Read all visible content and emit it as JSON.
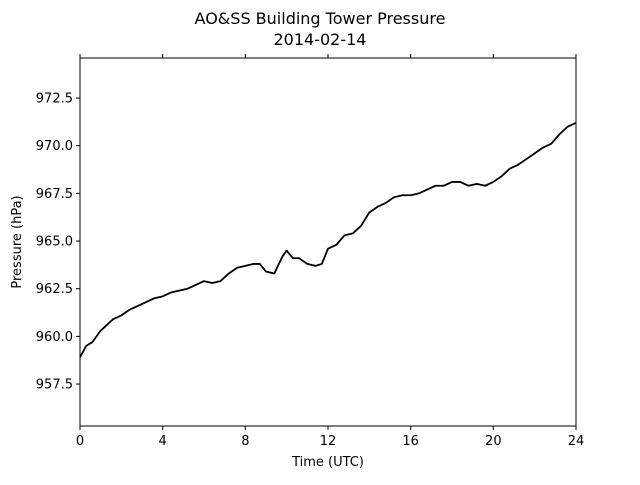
{
  "chart_data": {
    "type": "line",
    "title": "AO&SS Building Tower Pressure",
    "subtitle": "2014-02-14",
    "xlabel": "Time (UTC)",
    "ylabel": "Pressure (hPa)",
    "xlim": [
      0,
      24
    ],
    "ylim": [
      955.3,
      974.6
    ],
    "xticks": [
      0,
      4,
      8,
      12,
      16,
      20,
      24
    ],
    "xtick_labels": [
      "0",
      "4",
      "8",
      "12",
      "16",
      "20",
      "24"
    ],
    "yticks": [
      957.5,
      960.0,
      962.5,
      965.0,
      967.5,
      970.0,
      972.5
    ],
    "ytick_labels": [
      "957.5",
      "960.0",
      "962.5",
      "965.0",
      "967.5",
      "970.0",
      "972.5"
    ],
    "grid": false,
    "line_color": "#000000",
    "series": [
      {
        "name": "",
        "x": [
          0,
          0.3,
          0.6,
          1.0,
          1.3,
          1.6,
          2.0,
          2.4,
          2.8,
          3.2,
          3.6,
          4.0,
          4.4,
          4.8,
          5.2,
          5.6,
          6.0,
          6.4,
          6.8,
          7.2,
          7.6,
          8.0,
          8.4,
          8.7,
          9.0,
          9.4,
          9.8,
          10.0,
          10.3,
          10.6,
          11.0,
          11.4,
          11.7,
          12.0,
          12.4,
          12.8,
          13.2,
          13.6,
          14.0,
          14.4,
          14.8,
          15.2,
          15.6,
          16.0,
          16.4,
          16.8,
          17.2,
          17.6,
          18.0,
          18.4,
          18.8,
          19.2,
          19.6,
          20.0,
          20.4,
          20.8,
          21.2,
          21.6,
          22.0,
          22.4,
          22.8,
          23.2,
          23.6,
          24.0
        ],
        "y": [
          958.9,
          959.5,
          959.7,
          960.3,
          960.6,
          960.9,
          961.1,
          961.4,
          961.6,
          961.8,
          962.0,
          962.1,
          962.3,
          962.4,
          962.5,
          962.7,
          962.9,
          962.8,
          962.9,
          963.3,
          963.6,
          963.7,
          963.8,
          963.8,
          963.4,
          963.3,
          964.2,
          964.5,
          964.1,
          964.1,
          963.8,
          963.7,
          963.8,
          964.6,
          964.8,
          965.3,
          965.4,
          965.8,
          966.5,
          966.8,
          967.0,
          967.3,
          967.4,
          967.4,
          967.5,
          967.7,
          967.9,
          967.9,
          968.1,
          968.1,
          967.9,
          968.0,
          967.9,
          968.1,
          968.4,
          968.8,
          969.0,
          969.3,
          969.6,
          969.9,
          970.1,
          970.6,
          971.0,
          971.2
        ]
      }
    ]
  }
}
